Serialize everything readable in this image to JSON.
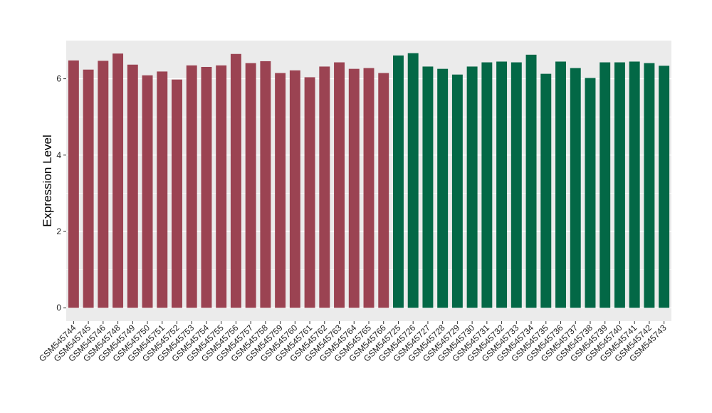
{
  "chart_data": {
    "type": "bar",
    "title": "",
    "xlabel": "",
    "ylabel": "Expression Level",
    "ylim": [
      -0.35,
      7.0
    ],
    "yticks": [
      0,
      2,
      4,
      6
    ],
    "grid": true,
    "legend": "none",
    "colors": {
      "group_a": "#9B4352",
      "group_b": "#036846",
      "panel_bg": "#EBEBEB",
      "grid": "#FFFFFF"
    },
    "categories": [
      "GSM545744",
      "GSM545745",
      "GSM545746",
      "GSM545748",
      "GSM545749",
      "GSM545750",
      "GSM545751",
      "GSM545752",
      "GSM545753",
      "GSM545754",
      "GSM545755",
      "GSM545756",
      "GSM545757",
      "GSM545758",
      "GSM545759",
      "GSM545760",
      "GSM545761",
      "GSM545762",
      "GSM545763",
      "GSM545764",
      "GSM545765",
      "GSM545766",
      "GSM545725",
      "GSM545726",
      "GSM545727",
      "GSM545728",
      "GSM545729",
      "GSM545730",
      "GSM545731",
      "GSM545732",
      "GSM545733",
      "GSM545734",
      "GSM545735",
      "GSM545736",
      "GSM545737",
      "GSM545738",
      "GSM545739",
      "GSM545740",
      "GSM545741",
      "GSM545742",
      "GSM545743"
    ],
    "values": [
      6.48,
      6.24,
      6.47,
      6.66,
      6.37,
      6.09,
      6.19,
      5.98,
      6.35,
      6.31,
      6.35,
      6.65,
      6.41,
      6.46,
      6.15,
      6.22,
      6.04,
      6.32,
      6.43,
      6.26,
      6.28,
      6.15,
      6.61,
      6.67,
      6.32,
      6.26,
      6.11,
      6.32,
      6.43,
      6.45,
      6.43,
      6.63,
      6.13,
      6.45,
      6.28,
      6.02,
      6.43,
      6.43,
      6.45,
      6.41,
      6.34
    ],
    "groups": [
      "a",
      "a",
      "a",
      "a",
      "a",
      "a",
      "a",
      "a",
      "a",
      "a",
      "a",
      "a",
      "a",
      "a",
      "a",
      "a",
      "a",
      "a",
      "a",
      "a",
      "a",
      "a",
      "b",
      "b",
      "b",
      "b",
      "b",
      "b",
      "b",
      "b",
      "b",
      "b",
      "b",
      "b",
      "b",
      "b",
      "b",
      "b",
      "b",
      "b",
      "b"
    ]
  }
}
